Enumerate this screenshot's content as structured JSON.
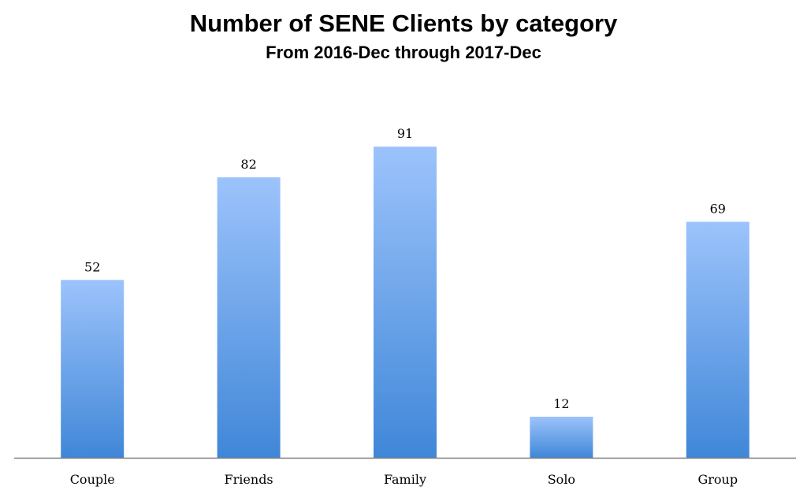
{
  "chart_data": {
    "type": "bar",
    "title": "Number of SENE Clients by category",
    "subtitle": "From 2016-Dec through 2017-Dec",
    "categories": [
      "Couple",
      "Friends",
      "Family",
      "Solo",
      "Group"
    ],
    "values": [
      52,
      82,
      91,
      12,
      69
    ],
    "data_labels": [
      "52",
      "82",
      "91",
      "12",
      "69"
    ],
    "xlabel": "",
    "ylabel": "",
    "ylim": [
      0,
      100
    ],
    "grid": false,
    "legend": "none",
    "bar_color_top": "#9cc3fb",
    "bar_color_bottom": "#4087d8",
    "axis_color": "#7f7f7f"
  }
}
